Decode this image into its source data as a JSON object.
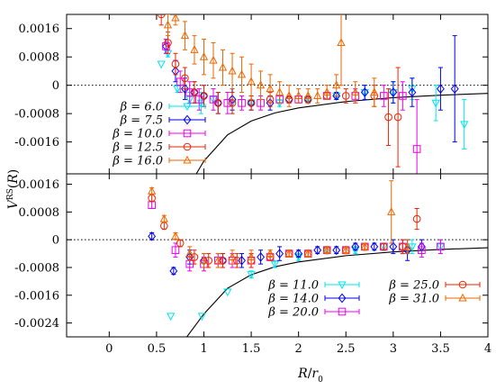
{
  "chart_data": [
    {
      "type": "scatter",
      "panel": "top",
      "xlim": [
        -0.45,
        4.0
      ],
      "ylim": [
        -0.0025,
        0.002
      ],
      "xticks": [],
      "yticks": [
        0.0016,
        0.0008,
        0,
        -0.0008,
        -0.0016
      ],
      "ytick_labels": [
        "0.0016",
        "0.0008",
        "0",
        "-0.0008",
        "-0.0016"
      ],
      "legend_position": "bottom-left",
      "legend_labels": [
        "β = 6.0",
        "β = 7.5",
        "β = 10.0",
        "β = 12.5",
        "β = 16.0"
      ],
      "zero_line": "dotted",
      "curve": {
        "description": "solid black curve",
        "a": -0.00024,
        "b": 0.0002,
        "points": [
          [
            0.92,
            -0.0025
          ],
          [
            1.0,
            -0.00214
          ],
          [
            1.25,
            -0.0014
          ],
          [
            1.5,
            -0.00101
          ],
          [
            1.75,
            -0.00078
          ],
          [
            2.0,
            -0.00064
          ],
          [
            2.5,
            -0.00046
          ],
          [
            3.0,
            -0.00035
          ],
          [
            3.5,
            -0.00028
          ],
          [
            4.0,
            -0.00023
          ]
        ]
      },
      "series": [
        {
          "name": "β = 6.0",
          "color": "#00e5ee",
          "marker": "triangle-down",
          "points": [
            [
              0.55,
              0.0006,
              0
            ],
            [
              0.62,
              0.0009,
              0.0001
            ],
            [
              0.72,
              -0.0001,
              0.0001
            ],
            [
              0.85,
              -0.0004,
              0.0002
            ],
            [
              0.97,
              -0.0005,
              0.0003
            ],
            [
              1.1,
              -0.0004,
              0.0003
            ],
            [
              1.3,
              -0.0005,
              0.0003
            ],
            [
              1.5,
              -0.0005,
              0.0002
            ],
            [
              1.8,
              -0.0005,
              0.0001
            ],
            [
              2.1,
              -0.0004,
              0.0001
            ],
            [
              2.4,
              -0.0003,
              0.0001
            ],
            [
              2.7,
              -0.0002,
              0.0002
            ],
            [
              3.0,
              -0.0002,
              0.0003
            ],
            [
              3.2,
              -0.0001,
              0.0003
            ],
            [
              3.45,
              -0.0005,
              0.0005
            ],
            [
              3.75,
              -0.0011,
              0.0007
            ]
          ]
        },
        {
          "name": "β = 7.5",
          "color": "#0000ee",
          "marker": "diamond",
          "points": [
            [
              0.6,
              0.0011,
              0.0002
            ],
            [
              0.7,
              0.0004,
              0.0003
            ],
            [
              0.8,
              -0.0001,
              0.0003
            ],
            [
              0.9,
              -0.0002,
              0.0003
            ],
            [
              1.0,
              -0.0003,
              0.0003
            ],
            [
              1.15,
              -0.0005,
              0.0003
            ],
            [
              1.3,
              -0.0004,
              0.0003
            ],
            [
              1.5,
              -0.0005,
              0.0002
            ],
            [
              1.7,
              -0.0005,
              0.0002
            ],
            [
              1.9,
              -0.0004,
              0.0001
            ],
            [
              2.1,
              -0.0004,
              0.0001
            ],
            [
              2.4,
              -0.0003,
              0.0001
            ],
            [
              2.7,
              -0.0002,
              0.0002
            ],
            [
              3.0,
              -0.0002,
              0.0003
            ],
            [
              3.2,
              -0.0002,
              0.0004
            ],
            [
              3.5,
              -0.0001,
              0.0006
            ],
            [
              3.65,
              -0.0001,
              0.0015
            ]
          ]
        },
        {
          "name": "β = 10.0",
          "color": "#ee00ee",
          "marker": "square",
          "points": [
            [
              0.6,
              0.0011,
              0.0002
            ],
            [
              0.75,
              0.0001,
              0.0003
            ],
            [
              0.85,
              -0.0002,
              0.0003
            ],
            [
              0.95,
              -0.0004,
              0.0003
            ],
            [
              1.1,
              -0.0004,
              0.0003
            ],
            [
              1.25,
              -0.0005,
              0.0003
            ],
            [
              1.4,
              -0.0005,
              0.0002
            ],
            [
              1.6,
              -0.0005,
              0.0002
            ],
            [
              1.8,
              -0.0004,
              0.0001
            ],
            [
              2.0,
              -0.0004,
              0.0001
            ],
            [
              2.3,
              -0.0003,
              0.0001
            ],
            [
              2.6,
              -0.0003,
              0.0002
            ],
            [
              2.9,
              -0.0003,
              0.0003
            ],
            [
              3.1,
              -0.0003,
              0.0004
            ],
            [
              3.25,
              -0.0018,
              0.0014
            ]
          ]
        },
        {
          "name": "β = 12.5",
          "color": "#ee2200",
          "marker": "circle",
          "points": [
            [
              0.55,
              0.002,
              0.0003
            ],
            [
              0.62,
              0.0012,
              0.0003
            ],
            [
              0.7,
              0.0006,
              0.0003
            ],
            [
              0.8,
              0.0002,
              0.0003
            ],
            [
              0.9,
              -0.0002,
              0.0003
            ],
            [
              1.0,
              -0.0003,
              0.0003
            ],
            [
              1.15,
              -0.0005,
              0.0003
            ],
            [
              1.3,
              -0.0005,
              0.0003
            ],
            [
              1.5,
              -0.0005,
              0.0002
            ],
            [
              1.7,
              -0.0004,
              0.0002
            ],
            [
              1.9,
              -0.0004,
              0.0001
            ],
            [
              2.1,
              -0.0004,
              0.0001
            ],
            [
              2.3,
              -0.0003,
              0.0001
            ],
            [
              2.5,
              -0.0003,
              0.0002
            ],
            [
              2.8,
              -0.0003,
              0.0003
            ],
            [
              2.95,
              -0.0009,
              0.0008
            ],
            [
              3.05,
              -0.0009,
              0.0014
            ]
          ]
        },
        {
          "name": "β = 16.0",
          "color": "#ee6600",
          "marker": "triangle-up",
          "points": [
            [
              0.62,
              0.0017,
              0.0003
            ],
            [
              0.7,
              0.0019,
              0.0002
            ],
            [
              0.8,
              0.0014,
              0.0004
            ],
            [
              0.9,
              0.001,
              0.0004
            ],
            [
              1.0,
              0.0008,
              0.0005
            ],
            [
              1.1,
              0.0007,
              0.0005
            ],
            [
              1.2,
              0.0005,
              0.0005
            ],
            [
              1.3,
              0.0004,
              0.0005
            ],
            [
              1.4,
              0.0003,
              0.0005
            ],
            [
              1.5,
              0.0001,
              0.0005
            ],
            [
              1.6,
              0.0,
              0.0004
            ],
            [
              1.7,
              -0.0001,
              0.0004
            ],
            [
              1.8,
              -0.0002,
              0.0003
            ],
            [
              1.9,
              -0.0003,
              0.0003
            ],
            [
              2.0,
              -0.0003,
              0.0002
            ],
            [
              2.1,
              -0.0003,
              0.0002
            ],
            [
              2.2,
              -0.0003,
              0.0002
            ],
            [
              2.3,
              -0.0002,
              0.0002
            ],
            [
              2.4,
              0.0,
              0.0003
            ],
            [
              2.45,
              0.0012,
              0.0012
            ],
            [
              2.6,
              -0.0002,
              0.0003
            ],
            [
              2.8,
              -0.0002,
              0.0004
            ]
          ]
        }
      ]
    },
    {
      "type": "scatter",
      "panel": "bottom",
      "xlim": [
        -0.45,
        4.0
      ],
      "ylim": [
        -0.0028,
        0.0019
      ],
      "xticks": [
        0,
        0.5,
        1,
        1.5,
        2,
        2.5,
        3,
        3.5,
        4
      ],
      "xtick_labels": [
        "0",
        "0.5",
        "1",
        "1.5",
        "2",
        "2.5",
        "3",
        "3.5",
        "4"
      ],
      "yticks": [
        0.0016,
        0.0008,
        0,
        -0.0008,
        -0.0016,
        -0.0024
      ],
      "ytick_labels": [
        "0.0016",
        "0.0008",
        "0",
        "-0.0008",
        "-0.0016",
        "-0.0024"
      ],
      "legend_position": "bottom-right",
      "legend_labels": [
        "β = 11.0",
        "β = 14.0",
        "β = 20.0",
        "β = 25.0",
        "β = 31.0"
      ],
      "zero_line": "dotted",
      "curve": {
        "description": "solid black curve",
        "points": [
          [
            0.82,
            -0.0028
          ],
          [
            1.0,
            -0.00214
          ],
          [
            1.25,
            -0.0014
          ],
          [
            1.5,
            -0.00101
          ],
          [
            1.75,
            -0.00078
          ],
          [
            2.0,
            -0.00064
          ],
          [
            2.5,
            -0.00046
          ],
          [
            3.0,
            -0.00035
          ],
          [
            3.5,
            -0.00028
          ],
          [
            4.0,
            -0.00023
          ]
        ]
      },
      "series": [
        {
          "name": "β = 11.0",
          "color": "#00e5ee",
          "marker": "triangle-down",
          "points": [
            [
              0.65,
              -0.0022,
              0
            ],
            [
              0.98,
              -0.0022,
              0
            ],
            [
              1.25,
              -0.0015,
              0
            ],
            [
              1.5,
              -0.001,
              0.0001
            ],
            [
              1.75,
              -0.0007,
              0.0001
            ],
            [
              2.0,
              -0.0005,
              0.0001
            ],
            [
              2.3,
              -0.0003,
              0.0001
            ],
            [
              2.6,
              -0.0003,
              0.0001
            ],
            [
              2.9,
              -0.0002,
              0.0001
            ],
            [
              3.2,
              -0.0002,
              0.0002
            ],
            [
              3.5,
              -0.0002,
              0.0002
            ]
          ]
        },
        {
          "name": "β = 14.0",
          "color": "#0000ee",
          "marker": "diamond",
          "points": [
            [
              0.45,
              0.0001,
              0.0001
            ],
            [
              0.68,
              -0.0009,
              0.0001
            ],
            [
              0.85,
              -0.0005,
              0.0002
            ],
            [
              1.0,
              -0.0006,
              0.0002
            ],
            [
              1.2,
              -0.0006,
              0.0002
            ],
            [
              1.4,
              -0.0006,
              0.0002
            ],
            [
              1.6,
              -0.0005,
              0.0002
            ],
            [
              1.8,
              -0.0004,
              0.0002
            ],
            [
              2.0,
              -0.0004,
              0.0001
            ],
            [
              2.2,
              -0.0003,
              0.0001
            ],
            [
              2.4,
              -0.0003,
              0.0001
            ],
            [
              2.6,
              -0.0002,
              0.0001
            ],
            [
              2.8,
              -0.0002,
              0.0001
            ],
            [
              3.0,
              -0.0002,
              0.0002
            ],
            [
              3.15,
              -0.0003,
              0.0003
            ],
            [
              3.3,
              -0.0002,
              0.0002
            ]
          ]
        },
        {
          "name": "β = 20.0",
          "color": "#ee00ee",
          "marker": "square",
          "points": [
            [
              0.45,
              0.001,
              0.0001
            ],
            [
              0.7,
              -0.0003,
              0.0002
            ],
            [
              0.85,
              -0.0007,
              0.0002
            ],
            [
              1.0,
              -0.0007,
              0.0002
            ],
            [
              1.15,
              -0.0006,
              0.0002
            ],
            [
              1.3,
              -0.0006,
              0.0002
            ],
            [
              1.5,
              -0.0006,
              0.0002
            ],
            [
              1.7,
              -0.0005,
              0.0001
            ],
            [
              1.9,
              -0.0004,
              0.0001
            ],
            [
              2.1,
              -0.0004,
              0.0001
            ],
            [
              2.3,
              -0.0003,
              0.0001
            ],
            [
              2.5,
              -0.0003,
              0.0001
            ],
            [
              2.7,
              -0.0002,
              0.0001
            ],
            [
              2.9,
              -0.0002,
              0.0001
            ],
            [
              3.1,
              -0.0002,
              0.0002
            ],
            [
              3.3,
              -0.0003,
              0.0002
            ],
            [
              3.5,
              -0.0002,
              0.0002
            ]
          ]
        },
        {
          "name": "β = 25.0",
          "color": "#ee2200",
          "marker": "circle",
          "points": [
            [
              0.45,
              0.0012,
              0.0001
            ],
            [
              0.58,
              0.0004,
              0.0001
            ],
            [
              0.75,
              -0.0001,
              0.0001
            ],
            [
              0.9,
              -0.0005,
              0.0002
            ],
            [
              1.05,
              -0.0006,
              0.0002
            ],
            [
              1.2,
              -0.0006,
              0.0002
            ],
            [
              1.35,
              -0.0006,
              0.0002
            ],
            [
              1.5,
              -0.0006,
              0.0002
            ],
            [
              1.7,
              -0.0005,
              0.0001
            ],
            [
              1.9,
              -0.0004,
              0.0001
            ],
            [
              2.1,
              -0.0004,
              0.0001
            ],
            [
              2.3,
              -0.0003,
              0.0001
            ],
            [
              2.5,
              -0.0003,
              0.0001
            ],
            [
              2.7,
              -0.0002,
              0.0001
            ],
            [
              2.9,
              -0.0002,
              0.0001
            ],
            [
              3.1,
              -0.0002,
              0.0002
            ],
            [
              3.25,
              0.0006,
              0.0003
            ]
          ]
        },
        {
          "name": "β = 31.0",
          "color": "#ee6600",
          "marker": "triangle-up",
          "points": [
            [
              0.45,
              0.0014,
              0.0001
            ],
            [
              0.58,
              0.0006,
              0.0001
            ],
            [
              0.7,
              0.0001,
              0.0001
            ],
            [
              0.85,
              -0.0004,
              0.0002
            ],
            [
              1.0,
              -0.0006,
              0.0002
            ],
            [
              1.15,
              -0.0006,
              0.0002
            ],
            [
              1.3,
              -0.0005,
              0.0002
            ],
            [
              1.5,
              -0.0005,
              0.0002
            ],
            [
              1.7,
              -0.0004,
              0.0001
            ],
            [
              1.9,
              -0.0004,
              0.0001
            ],
            [
              2.1,
              -0.0004,
              0.0001
            ],
            [
              2.3,
              -0.0003,
              0.0001
            ],
            [
              2.5,
              -0.0003,
              0.0001
            ],
            [
              2.7,
              -0.0002,
              0.0001
            ],
            [
              2.98,
              0.0008,
              0.0009
            ],
            [
              3.15,
              -0.0002,
              0.0002
            ]
          ]
        }
      ]
    }
  ],
  "ylabel": "V^RS(R)",
  "xlabel": "R/r0"
}
